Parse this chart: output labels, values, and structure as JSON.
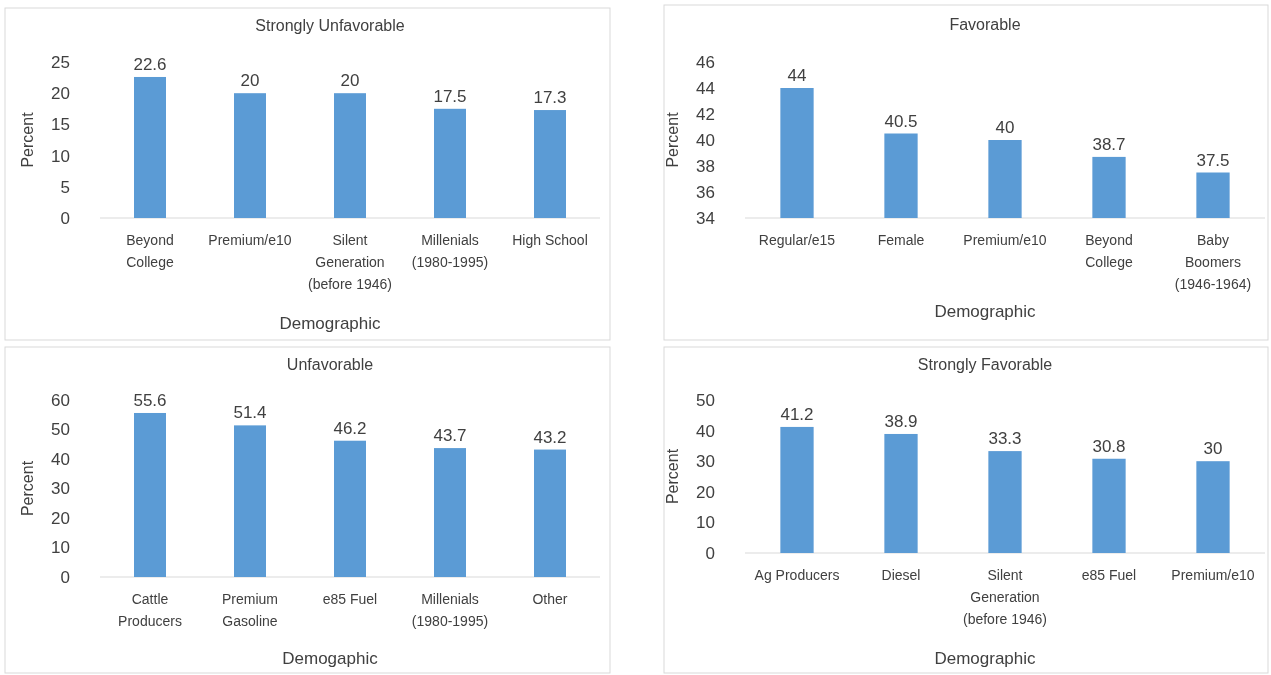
{
  "chart_data": [
    {
      "type": "bar",
      "title": "Strongly Unfavorable",
      "xlabel": "Demographic",
      "ylabel": "Percent",
      "categories": [
        "Beyond\nCollege",
        "Premium/e10",
        "Silent\nGeneration\n(before 1946)",
        "Millenials\n(1980-1995)",
        "High School"
      ],
      "values": [
        22.6,
        20,
        20,
        17.5,
        17.3
      ],
      "color": "#5b9bd5",
      "ylim": [
        0,
        25
      ],
      "yticks": [
        0,
        5,
        10,
        15,
        20,
        25
      ],
      "data_labels": true
    },
    {
      "type": "bar",
      "title": "Favorable",
      "xlabel": "Demographic",
      "ylabel": "Percent",
      "categories": [
        "Regular/e15",
        "Female",
        "Premium/e10",
        "Beyond\nCollege",
        "Baby\nBoomers\n(1946-1964)"
      ],
      "values": [
        44,
        40.5,
        40,
        38.7,
        37.5
      ],
      "color": "#5b9bd5",
      "ylim": [
        34,
        46
      ],
      "yticks": [
        34,
        36,
        38,
        40,
        42,
        44,
        46
      ],
      "data_labels": true
    },
    {
      "type": "bar",
      "title": "Unfavorable",
      "xlabel": "Demogaphic",
      "ylabel": "Percent",
      "categories": [
        "Cattle\nProducers",
        "Premium\nGasoline",
        "e85 Fuel",
        "Millenials\n(1980-1995)",
        "Other"
      ],
      "values": [
        55.6,
        51.4,
        46.2,
        43.7,
        43.2
      ],
      "color": "#5b9bd5",
      "ylim": [
        0,
        60
      ],
      "yticks": [
        0,
        10,
        20,
        30,
        40,
        50,
        60
      ],
      "data_labels": true
    },
    {
      "type": "bar",
      "title": "Strongly Favorable",
      "xlabel": "Demographic",
      "ylabel": "Percent",
      "categories": [
        "Ag Producers",
        "Diesel",
        "Silent\nGeneration\n(before 1946)",
        "e85 Fuel",
        "Premium/e10"
      ],
      "values": [
        41.2,
        38.9,
        33.3,
        30.8,
        30
      ],
      "color": "#5b9bd5",
      "ylim": [
        0,
        50
      ],
      "yticks": [
        0,
        10,
        20,
        30,
        40,
        50
      ],
      "data_labels": true
    }
  ]
}
